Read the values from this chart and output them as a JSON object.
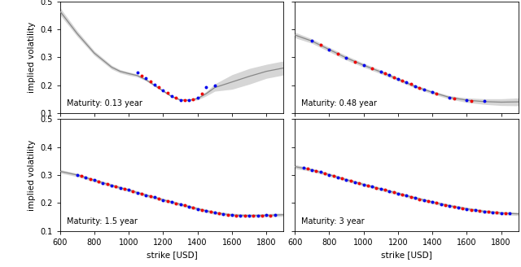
{
  "panels": [
    {
      "label": "Maturity: 0.13 year",
      "xlim": [
        600,
        1900
      ],
      "ylim": [
        0.1,
        0.5
      ],
      "yticks": [
        0.1,
        0.2,
        0.3,
        0.4,
        0.5
      ],
      "blue_x": [
        1050,
        1100,
        1150,
        1200,
        1250,
        1300,
        1350,
        1400,
        1450,
        1500
      ],
      "blue_y": [
        0.245,
        0.225,
        0.203,
        0.183,
        0.163,
        0.148,
        0.148,
        0.155,
        0.195,
        0.2
      ],
      "red_x": [
        1075,
        1125,
        1175,
        1225,
        1275,
        1325,
        1375,
        1425
      ],
      "red_y": [
        0.235,
        0.213,
        0.193,
        0.173,
        0.155,
        0.148,
        0.151,
        0.17
      ],
      "mean_x": [
        600,
        700,
        800,
        900,
        950,
        1000,
        1050,
        1100,
        1150,
        1200,
        1250,
        1300,
        1350,
        1400,
        1450,
        1500,
        1600,
        1700,
        1800,
        1900
      ],
      "mean_y": [
        0.465,
        0.385,
        0.315,
        0.265,
        0.25,
        0.242,
        0.235,
        0.22,
        0.2,
        0.18,
        0.16,
        0.148,
        0.147,
        0.153,
        0.17,
        0.192,
        0.212,
        0.232,
        0.25,
        0.262
      ],
      "upper_y": [
        0.478,
        0.395,
        0.323,
        0.272,
        0.256,
        0.248,
        0.24,
        0.224,
        0.204,
        0.183,
        0.163,
        0.151,
        0.15,
        0.158,
        0.178,
        0.205,
        0.238,
        0.26,
        0.275,
        0.287
      ],
      "lower_y": [
        0.452,
        0.375,
        0.307,
        0.258,
        0.244,
        0.236,
        0.23,
        0.216,
        0.196,
        0.177,
        0.157,
        0.145,
        0.144,
        0.148,
        0.162,
        0.179,
        0.186,
        0.204,
        0.225,
        0.237
      ]
    },
    {
      "label": "Maturity: 0.48 year",
      "xlim": [
        600,
        1900
      ],
      "ylim": [
        0.1,
        0.5
      ],
      "yticks": [
        0.1,
        0.2,
        0.3,
        0.4,
        0.5
      ],
      "blue_x": [
        700,
        800,
        900,
        1000,
        1100,
        1150,
        1200,
        1250,
        1300,
        1350,
        1400,
        1500,
        1600,
        1700
      ],
      "blue_y": [
        0.36,
        0.328,
        0.298,
        0.272,
        0.248,
        0.236,
        0.224,
        0.211,
        0.198,
        0.186,
        0.175,
        0.157,
        0.148,
        0.143
      ],
      "red_x": [
        750,
        850,
        950,
        1050,
        1125,
        1175,
        1225,
        1275,
        1325,
        1425,
        1525,
        1625
      ],
      "red_y": [
        0.344,
        0.313,
        0.285,
        0.26,
        0.242,
        0.23,
        0.218,
        0.204,
        0.192,
        0.17,
        0.153,
        0.145
      ],
      "mean_x": [
        600,
        700,
        800,
        900,
        1000,
        1100,
        1200,
        1300,
        1400,
        1500,
        1600,
        1700,
        1800,
        1900
      ],
      "mean_y": [
        0.38,
        0.358,
        0.328,
        0.298,
        0.272,
        0.248,
        0.222,
        0.196,
        0.175,
        0.157,
        0.147,
        0.142,
        0.14,
        0.141
      ],
      "upper_y": [
        0.39,
        0.366,
        0.336,
        0.306,
        0.279,
        0.255,
        0.228,
        0.202,
        0.181,
        0.163,
        0.155,
        0.152,
        0.152,
        0.155
      ],
      "lower_y": [
        0.37,
        0.35,
        0.32,
        0.29,
        0.265,
        0.241,
        0.216,
        0.19,
        0.169,
        0.151,
        0.139,
        0.132,
        0.128,
        0.127
      ]
    },
    {
      "label": "Maturity: 1.5 year",
      "xlim": [
        600,
        1900
      ],
      "ylim": [
        0.1,
        0.5
      ],
      "yticks": [
        0.1,
        0.2,
        0.3,
        0.4,
        0.5
      ],
      "blue_x": [
        700,
        750,
        800,
        850,
        900,
        950,
        1000,
        1050,
        1100,
        1150,
        1200,
        1250,
        1300,
        1350,
        1400,
        1450,
        1500,
        1550,
        1600,
        1650,
        1700,
        1750,
        1800,
        1850
      ],
      "blue_y": [
        0.3,
        0.291,
        0.281,
        0.272,
        0.263,
        0.254,
        0.246,
        0.237,
        0.228,
        0.22,
        0.211,
        0.203,
        0.195,
        0.187,
        0.179,
        0.172,
        0.165,
        0.16,
        0.157,
        0.155,
        0.155,
        0.155,
        0.156,
        0.157
      ],
      "red_x": [
        725,
        775,
        825,
        875,
        925,
        975,
        1025,
        1075,
        1125,
        1175,
        1225,
        1275,
        1325,
        1375,
        1425,
        1475,
        1525,
        1575,
        1625,
        1675,
        1725,
        1775,
        1825
      ],
      "red_y": [
        0.296,
        0.286,
        0.277,
        0.268,
        0.259,
        0.25,
        0.242,
        0.233,
        0.224,
        0.216,
        0.207,
        0.199,
        0.191,
        0.183,
        0.176,
        0.169,
        0.162,
        0.157,
        0.154,
        0.153,
        0.153,
        0.154,
        0.155
      ],
      "mean_x": [
        600,
        700,
        800,
        900,
        1000,
        1100,
        1200,
        1300,
        1400,
        1500,
        1600,
        1700,
        1800,
        1900
      ],
      "mean_y": [
        0.313,
        0.3,
        0.281,
        0.263,
        0.246,
        0.228,
        0.211,
        0.195,
        0.179,
        0.165,
        0.157,
        0.155,
        0.156,
        0.158
      ],
      "upper_y": [
        0.319,
        0.306,
        0.287,
        0.269,
        0.252,
        0.234,
        0.217,
        0.201,
        0.185,
        0.171,
        0.163,
        0.161,
        0.162,
        0.164
      ],
      "lower_y": [
        0.307,
        0.294,
        0.275,
        0.257,
        0.24,
        0.222,
        0.205,
        0.189,
        0.173,
        0.159,
        0.151,
        0.149,
        0.15,
        0.152
      ]
    },
    {
      "label": "Maturity: 3 year",
      "xlim": [
        600,
        1900
      ],
      "ylim": [
        0.1,
        0.5
      ],
      "yticks": [
        0.1,
        0.2,
        0.3,
        0.4,
        0.5
      ],
      "blue_x": [
        650,
        700,
        750,
        800,
        850,
        900,
        950,
        1000,
        1050,
        1100,
        1150,
        1200,
        1250,
        1300,
        1350,
        1400,
        1450,
        1500,
        1550,
        1600,
        1650,
        1700,
        1750,
        1800,
        1850
      ],
      "blue_y": [
        0.326,
        0.318,
        0.31,
        0.301,
        0.292,
        0.283,
        0.275,
        0.266,
        0.258,
        0.25,
        0.242,
        0.234,
        0.226,
        0.218,
        0.21,
        0.203,
        0.196,
        0.19,
        0.184,
        0.179,
        0.174,
        0.17,
        0.167,
        0.164,
        0.162
      ],
      "red_x": [
        675,
        725,
        775,
        825,
        875,
        925,
        975,
        1025,
        1075,
        1125,
        1175,
        1225,
        1275,
        1325,
        1375,
        1425,
        1475,
        1525,
        1575,
        1625,
        1675,
        1725,
        1775,
        1825
      ],
      "red_y": [
        0.322,
        0.314,
        0.306,
        0.297,
        0.288,
        0.279,
        0.271,
        0.262,
        0.254,
        0.246,
        0.238,
        0.23,
        0.222,
        0.214,
        0.207,
        0.2,
        0.193,
        0.187,
        0.181,
        0.176,
        0.172,
        0.168,
        0.165,
        0.163
      ],
      "mean_x": [
        600,
        700,
        800,
        900,
        1000,
        1100,
        1200,
        1300,
        1400,
        1500,
        1600,
        1700,
        1800,
        1900
      ],
      "mean_y": [
        0.33,
        0.318,
        0.301,
        0.283,
        0.266,
        0.25,
        0.234,
        0.218,
        0.203,
        0.19,
        0.179,
        0.17,
        0.164,
        0.161
      ],
      "upper_y": [
        0.337,
        0.324,
        0.307,
        0.289,
        0.272,
        0.256,
        0.24,
        0.224,
        0.209,
        0.196,
        0.185,
        0.176,
        0.17,
        0.167
      ],
      "lower_y": [
        0.323,
        0.312,
        0.295,
        0.277,
        0.26,
        0.244,
        0.228,
        0.212,
        0.197,
        0.184,
        0.173,
        0.164,
        0.158,
        0.155
      ]
    }
  ],
  "blue_color": "#0000EE",
  "red_color": "#EE0000",
  "mean_color": "#888888",
  "band_color": "#BBBBBB",
  "band_alpha": 0.6,
  "dot_size": 8,
  "line_width": 0.9,
  "xlabel": "strike [USD]",
  "ylabel": "implied volatility",
  "xticks": [
    600,
    800,
    1000,
    1200,
    1400,
    1600,
    1800
  ]
}
